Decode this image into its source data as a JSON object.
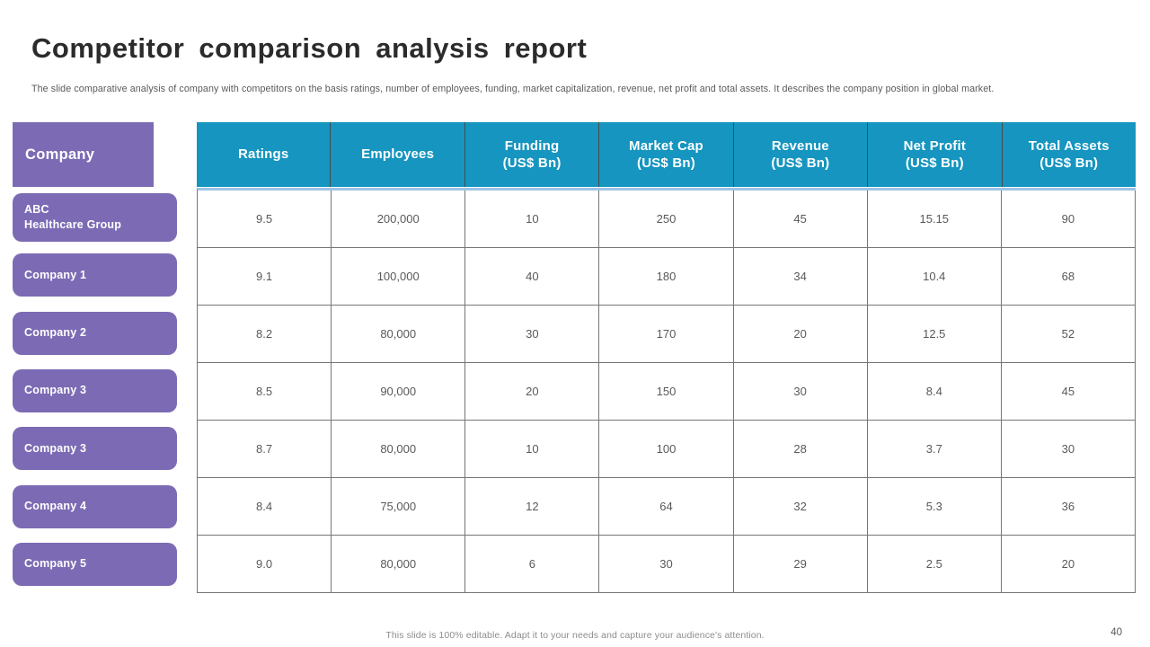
{
  "slide": {
    "title": "Competitor comparison analysis report",
    "subtitle": "The slide comparative analysis of company with competitors on the basis ratings, number of employees, funding, market capitalization, revenue, net profit and total assets. It describes the company position in global market.",
    "footer": "This slide is 100% editable. Adapt it to your needs and capture your audience's attention.",
    "page_number": "40"
  },
  "table": {
    "company_header": "Company",
    "columns": [
      {
        "l1": "Ratings",
        "l2": ""
      },
      {
        "l1": "Employees",
        "l2": ""
      },
      {
        "l1": "Funding",
        "l2": "(US$ Bn)"
      },
      {
        "l1": "Market Cap",
        "l2": "(US$ Bn)"
      },
      {
        "l1": "Revenue",
        "l2": "(US$ Bn)"
      },
      {
        "l1": "Net Profit",
        "l2": "(US$ Bn)"
      },
      {
        "l1": "Total Assets",
        "l2": "(US$ Bn)"
      }
    ],
    "rows": [
      {
        "company": "ABC\nHealthcare Group",
        "values": [
          "9.5",
          "200,000",
          "10",
          "250",
          "45",
          "15.15",
          "90"
        ]
      },
      {
        "company": "Company 1",
        "values": [
          "9.1",
          "100,000",
          "40",
          "180",
          "34",
          "10.4",
          "68"
        ]
      },
      {
        "company": "Company 2",
        "values": [
          "8.2",
          "80,000",
          "30",
          "170",
          "20",
          "12.5",
          "52"
        ]
      },
      {
        "company": "Company 3",
        "values": [
          "8.5",
          "90,000",
          "20",
          "150",
          "30",
          "8.4",
          "45"
        ]
      },
      {
        "company": "Company 3",
        "values": [
          "8.7",
          "80,000",
          "10",
          "100",
          "28",
          "3.7",
          "30"
        ]
      },
      {
        "company": "Company 4",
        "values": [
          "8.4",
          "75,000",
          "12",
          "64",
          "32",
          "5.3",
          "36"
        ]
      },
      {
        "company": "Company 5",
        "values": [
          "9.0",
          "80,000",
          "6",
          "30",
          "29",
          "2.5",
          "20"
        ]
      }
    ]
  },
  "colors": {
    "purple": "#7c6bb4",
    "teal": "#1595bf",
    "light_blue_border": "#9dc3e6",
    "grid_line": "#767676",
    "body_text": "#595959",
    "footer_text": "#8e8e8e"
  }
}
